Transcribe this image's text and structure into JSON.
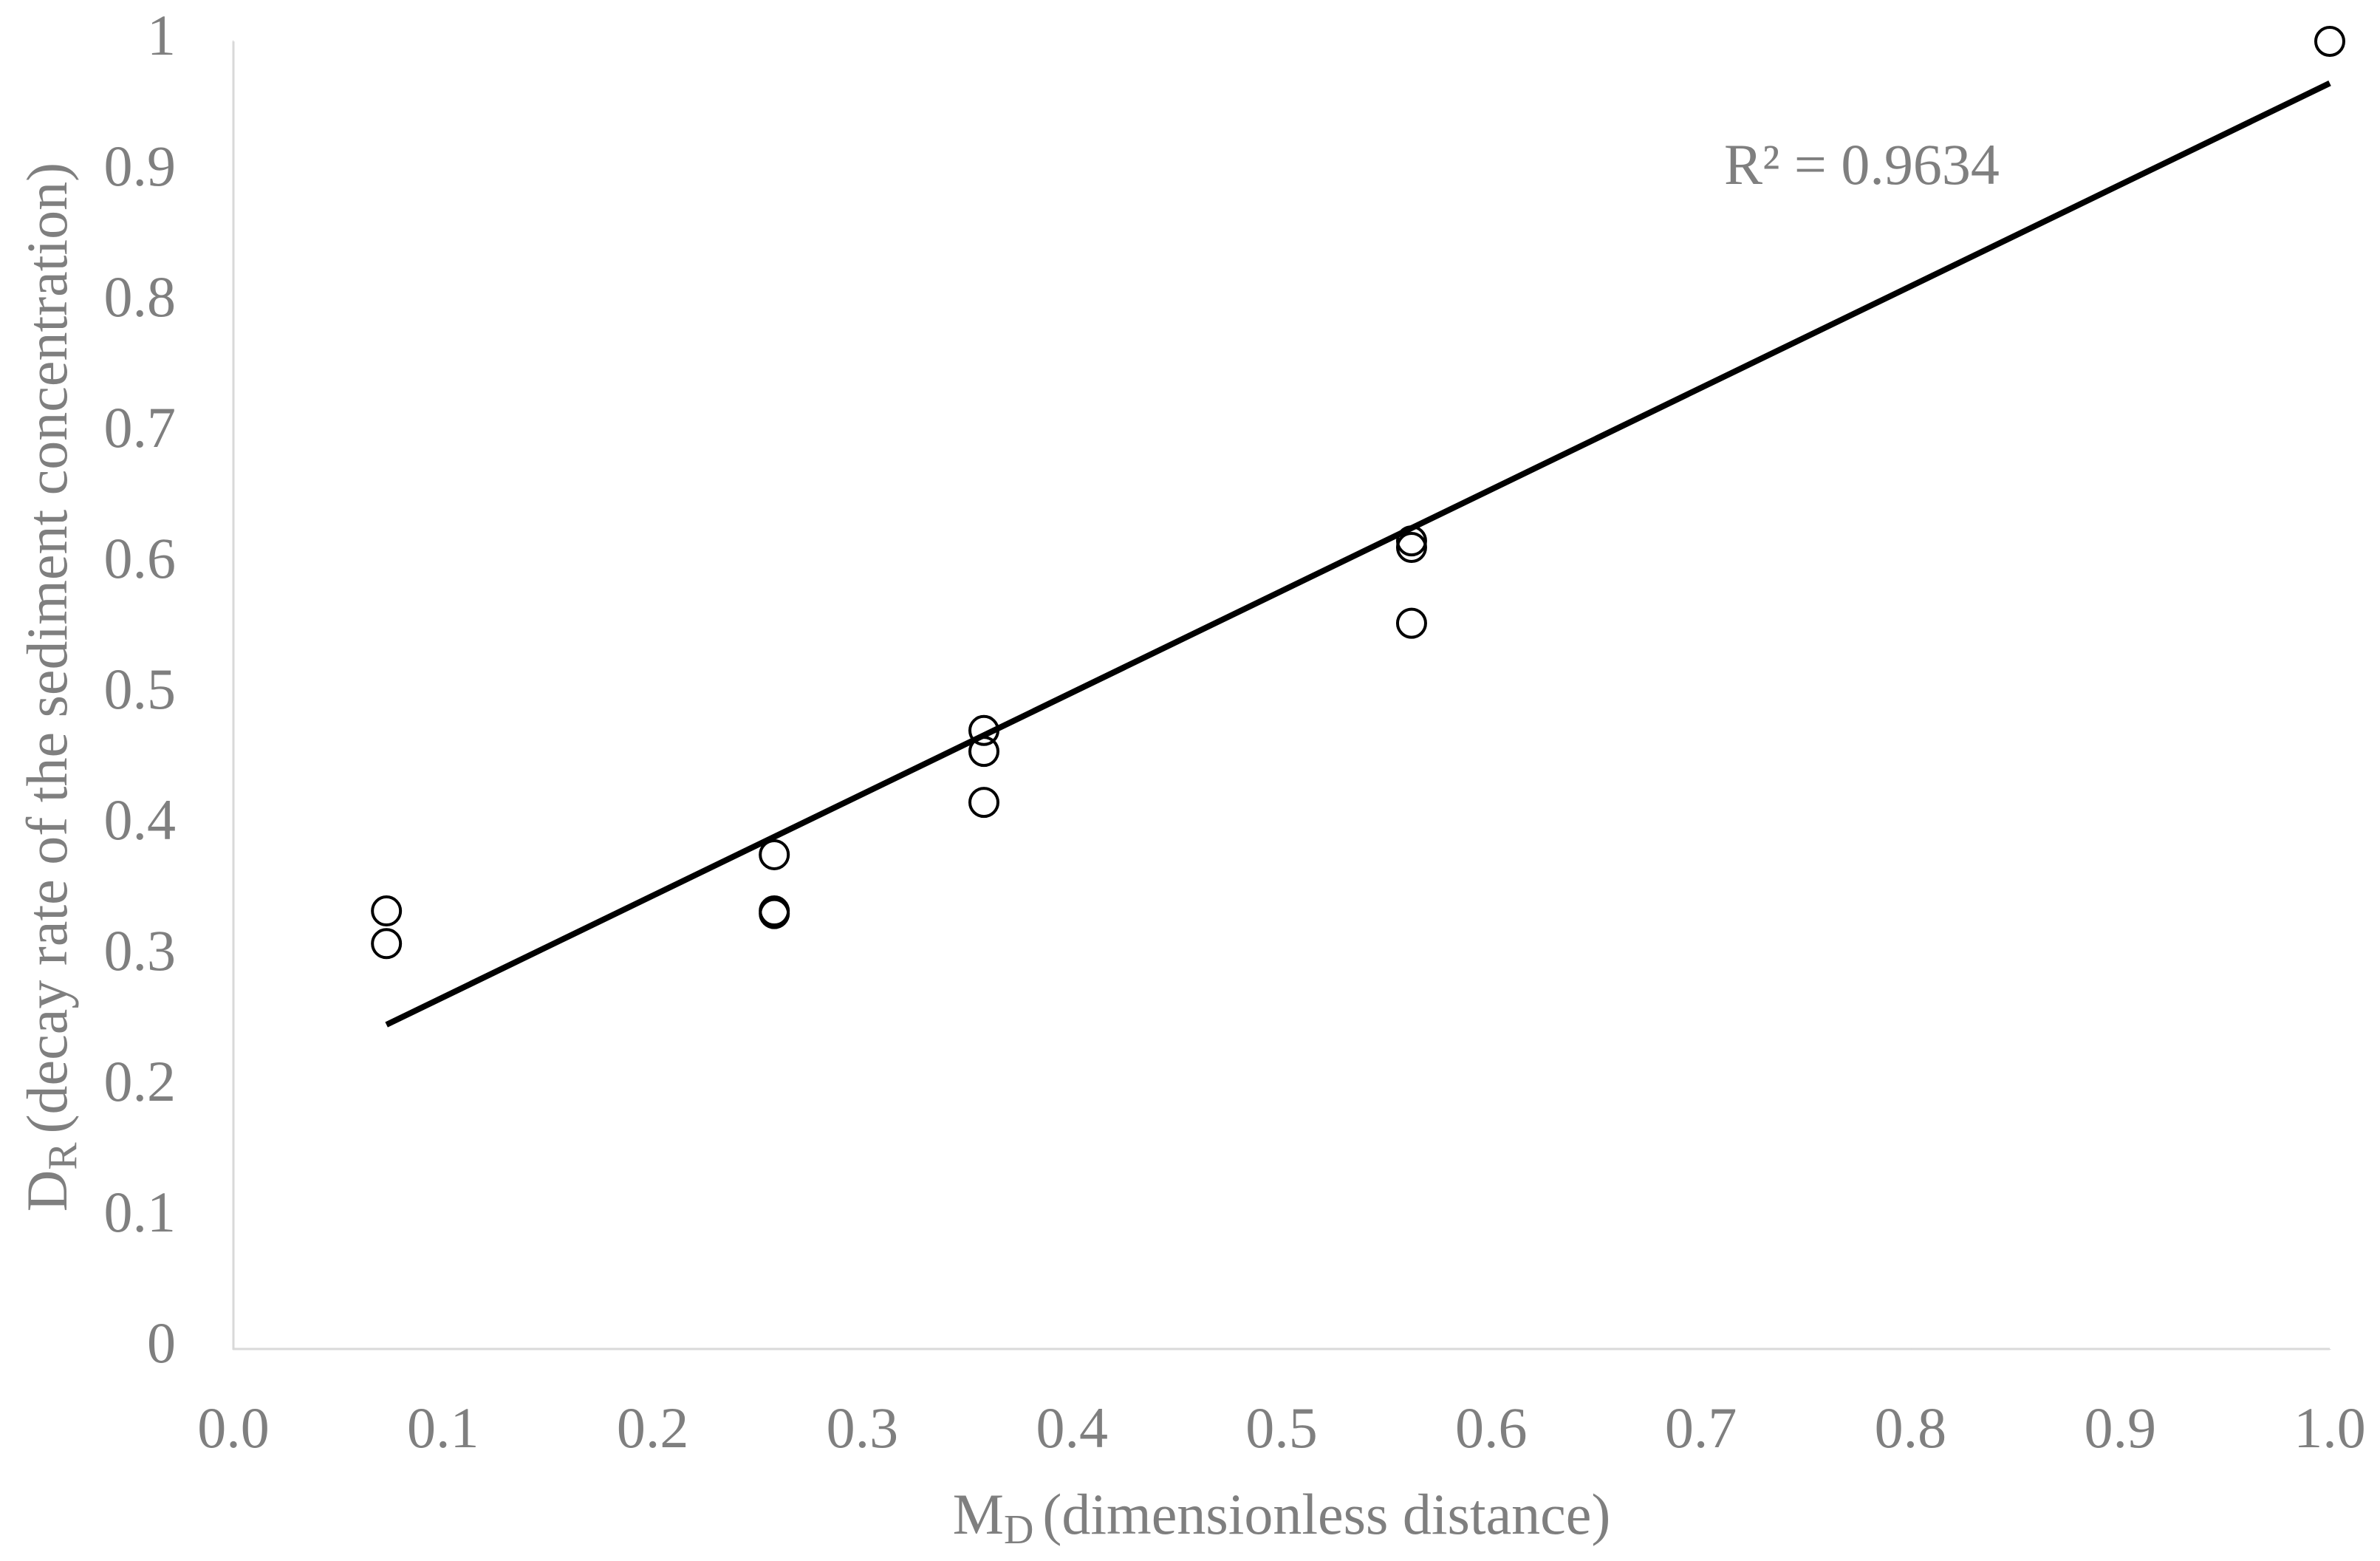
{
  "chart_data": {
    "type": "scatter",
    "x_label_symbol": "M",
    "x_label_subscript": "D",
    "x_label": "(dimensionless distance)",
    "y_label_symbol": "D",
    "y_label_subscript": "R",
    "y_label": "(decay rate of the sediment concentration)",
    "annotation": "R² = 0.9634",
    "x": [
      0.073,
      0.073,
      0.258,
      0.258,
      0.258,
      0.358,
      0.358,
      0.358,
      0.562,
      0.562,
      0.562,
      1.0
    ],
    "values": [
      0.335,
      0.31,
      0.378,
      0.335,
      0.333,
      0.473,
      0.457,
      0.418,
      0.618,
      0.613,
      0.555,
      1.0
    ],
    "color": "#000000",
    "trendline": {
      "x": [
        0.073,
        1.0
      ],
      "y": [
        0.248,
        0.968
      ],
      "color": "#000000"
    },
    "xlim": [
      0,
      1
    ],
    "ylim": [
      0,
      1
    ],
    "xticks": [
      {
        "value": 0,
        "label": "0.0"
      },
      0.1,
      0.2,
      0.3,
      0.4,
      0.5,
      0.6,
      0.7,
      0.8,
      0.9,
      {
        "value": 1,
        "label": "1.0"
      }
    ],
    "yticks": [
      0,
      0.1,
      0.2,
      0.3,
      0.4,
      0.5,
      0.6,
      0.7,
      0.8,
      0.9,
      1
    ],
    "grid": false
  }
}
